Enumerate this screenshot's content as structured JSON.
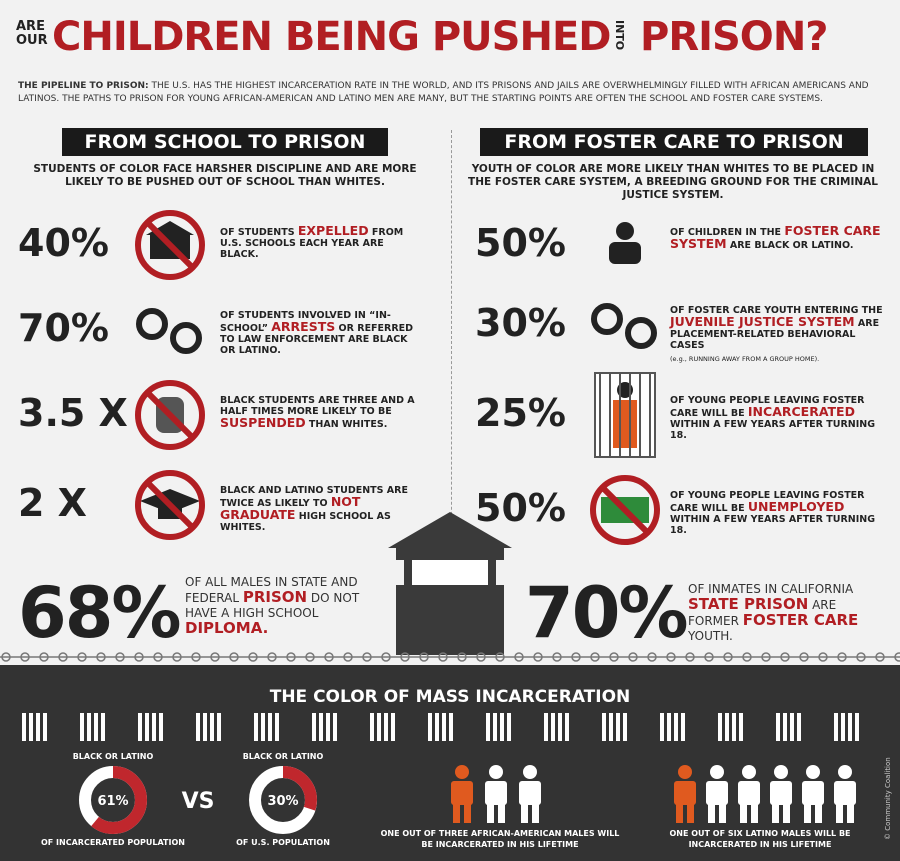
{
  "header": {
    "pre": "ARE OUR",
    "title": "CHILDREN BEING PUSHED",
    "into": "INTO",
    "title_end": "PRISON?"
  },
  "intro": {
    "lead": "THE PIPELINE TO PRISON:",
    "text": " THE U.S. HAS THE HIGHEST INCARCERATION RATE IN THE WORLD, AND ITS PRISONS AND JAILS ARE OVERWHELMINGLY FILLED WITH AFRICAN AMERICANS AND LATINOS. THE PATHS TO PRISON FOR YOUNG AFRICAN-AMERICAN AND LATINO MEN ARE MANY, BUT THE STARTING POINTS ARE OFTEN THE SCHOOL AND FOSTER CARE SYSTEMS."
  },
  "school": {
    "heading": "FROM  SCHOOL TO PRISON",
    "subheading": "STUDENTS OF COLOR FACE HARSHER DISCIPLINE AND ARE MORE LIKELY TO BE PUSHED OUT OF SCHOOL THAN WHITES.",
    "stats": [
      {
        "figure": "40%",
        "parts": [
          {
            "text": "OF STUDENTS "
          },
          {
            "text": "EXPELLED",
            "color": "#b11e23"
          },
          {
            "text": " FROM U.S. SCHOOLS EACH YEAR ARE BLACK."
          }
        ]
      },
      {
        "figure": "70%",
        "parts": [
          {
            "text": "OF STUDENTS INVOLVED IN “IN-SCHOOL” "
          },
          {
            "text": "ARRESTS",
            "color": "#b11e23"
          },
          {
            "text": " OR REFERRED TO LAW ENFORCEMENT ARE BLACK OR LATINO."
          }
        ]
      },
      {
        "figure": "3.5 X",
        "parts": [
          {
            "text": "BLACK STUDENTS ARE THREE AND A HALF TIMES MORE LIKELY TO BE "
          },
          {
            "text": "SUSPENDED",
            "color": "#b11e23"
          },
          {
            "text": " THAN WHITES."
          }
        ]
      },
      {
        "figure": "2 X",
        "parts": [
          {
            "text": "BLACK AND LATINO STUDENTS ARE TWICE AS LIKELY  TO "
          },
          {
            "text": "NOT GRADUATE",
            "color": "#b11e23"
          },
          {
            "text": " HIGH SCHOOL AS WHITES."
          }
        ]
      }
    ]
  },
  "foster": {
    "heading": "FROM  FOSTER CARE TO PRISON",
    "subheading": "YOUTH OF COLOR ARE MORE LIKELY THAN WHITES TO BE PLACED IN THE FOSTER CARE SYSTEM, A BREEDING GROUND FOR THE CRIMINAL JUSTICE SYSTEM.",
    "stats": [
      {
        "figure": "50%",
        "parts": [
          {
            "text": "OF CHILDREN IN THE "
          },
          {
            "text": "FOSTER CARE SYSTEM",
            "color": "#b11e23"
          },
          {
            "text": " ARE BLACK OR LATINO."
          }
        ]
      },
      {
        "figure": "30%",
        "parts": [
          {
            "text": "OF FOSTER CARE YOUTH ENTERING THE "
          },
          {
            "text": "JUVENILE JUSTICE SYSTEM",
            "color": "#b11e23"
          },
          {
            "text": " ARE PLACEMENT-RELATED BEHAVIORAL CASES"
          }
        ],
        "note": "(e.g., RUNNING AWAY FROM A GROUP HOME)."
      },
      {
        "figure": "25%",
        "parts": [
          {
            "text": "OF YOUNG PEOPLE LEAVING FOSTER CARE WILL BE "
          },
          {
            "text": "INCARCERATED",
            "color": "#b11e23"
          },
          {
            "text": " WITHIN A FEW YEARS AFTER TURNING 18."
          }
        ]
      },
      {
        "figure": "50%",
        "parts": [
          {
            "text": "OF YOUNG PEOPLE LEAVING FOSTER CARE WILL BE "
          },
          {
            "text": "UNEMPLOYED",
            "color": "#b11e23"
          },
          {
            "text": " WITHIN A FEW YEARS AFTER TURNING 18."
          }
        ]
      }
    ]
  },
  "big_stats": [
    {
      "figure": "68%",
      "parts": [
        {
          "text": "OF ALL MALES IN STATE AND FEDERAL "
        },
        {
          "text": "PRISON",
          "color": "#b11e23"
        },
        {
          "text": " DO NOT HAVE A HIGH SCHOOL "
        },
        {
          "text": "DIPLOMA.",
          "color": "#b11e23"
        }
      ]
    },
    {
      "figure": "70%",
      "parts": [
        {
          "text": "OF INMATES IN CALIFORNIA "
        },
        {
          "text": "STATE PRISON",
          "color": "#b11e23"
        },
        {
          "text": " ARE FORMER "
        },
        {
          "text": "FOSTER CARE",
          "color": "#b11e23"
        },
        {
          "text": " YOUTH."
        }
      ]
    }
  ],
  "mass": {
    "title": "THE COLOR OF MASS INCARCERATION",
    "donuts": [
      {
        "top": "BLACK OR LATINO",
        "value": 61,
        "label": "61%",
        "bottom": "OF INCARCERATED POPULATION"
      },
      {
        "top": "BLACK OR LATINO",
        "value": 30,
        "label": "30%",
        "bottom": "OF U.S. POPULATION"
      }
    ],
    "vs": "VS",
    "captions": [
      "ONE OUT OF THREE AFRICAN-AMERICAN MALES WILL BE INCARCERATED IN HIS LIFETIME",
      "ONE OUT OF SIX LATINO MALES WILL BE INCARCERATED IN HIS LIFETIME"
    ],
    "credit": "© Community Coalition"
  }
}
